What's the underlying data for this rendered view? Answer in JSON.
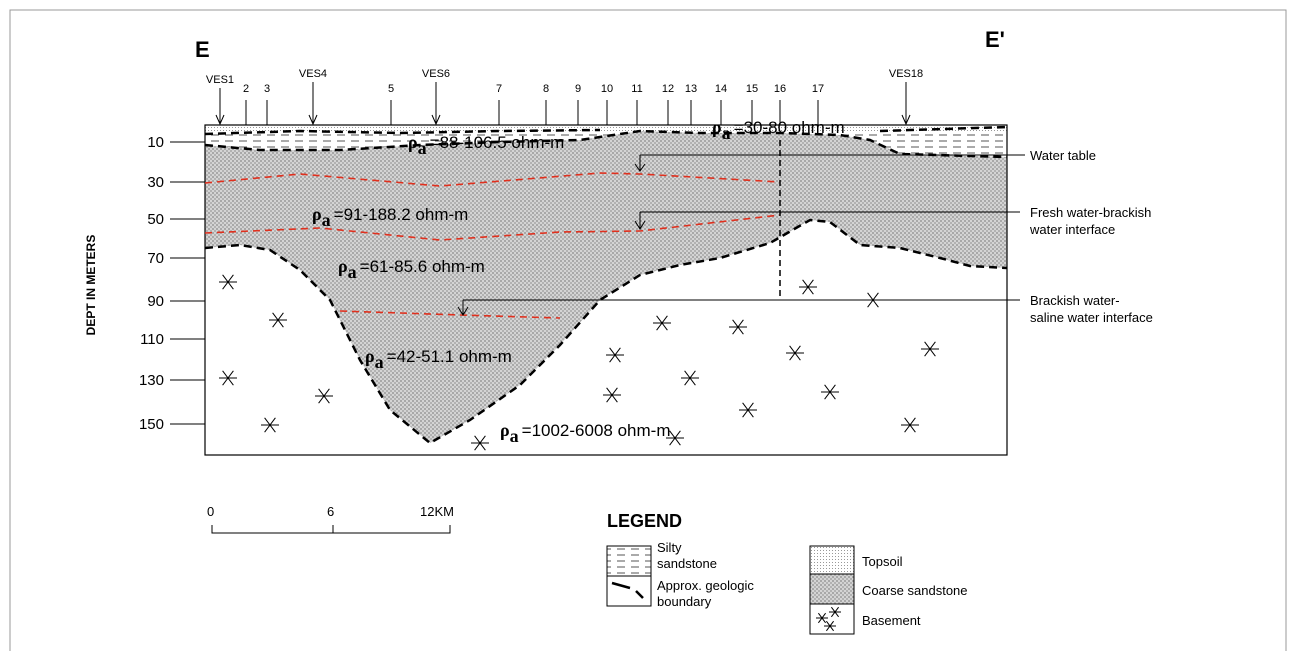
{
  "section": {
    "left_label": "E",
    "right_label": "E'",
    "stations": [
      "VES1",
      "2",
      "3",
      "VES4",
      "5",
      "VES6",
      "7",
      "8",
      "9",
      "10",
      "11",
      "12",
      "13",
      "14",
      "15",
      "16",
      "17",
      "VES18"
    ],
    "depth_axis": {
      "label": "DEPT IN METERS",
      "ticks": [
        10,
        30,
        50,
        70,
        90,
        110,
        130,
        150
      ]
    },
    "rho_symbol": "ρ",
    "rho_subscript": "a",
    "resistivities": [
      "=30-80 ohm-m",
      "=88-106.5 ohm-m",
      "=91-188.2 ohm-m",
      "=61-85.6 ohm-m",
      "=42-51.1 ohm-m",
      "=1002-6008 ohm-m"
    ],
    "annotations": [
      [
        "Water table"
      ],
      [
        "Fresh water-brackish",
        "water interface"
      ],
      [
        "Brackish water-",
        "saline water interface"
      ]
    ]
  },
  "scale": {
    "labels": [
      "0",
      "6",
      "12KM"
    ]
  },
  "legend": {
    "title": "LEGEND",
    "items": [
      [
        "Silty",
        "sandstone"
      ],
      [
        "Approx. geologic",
        "boundary"
      ],
      [
        "Topsoil"
      ],
      [
        "Coarse sandstone"
      ],
      [
        "Basement"
      ]
    ]
  }
}
